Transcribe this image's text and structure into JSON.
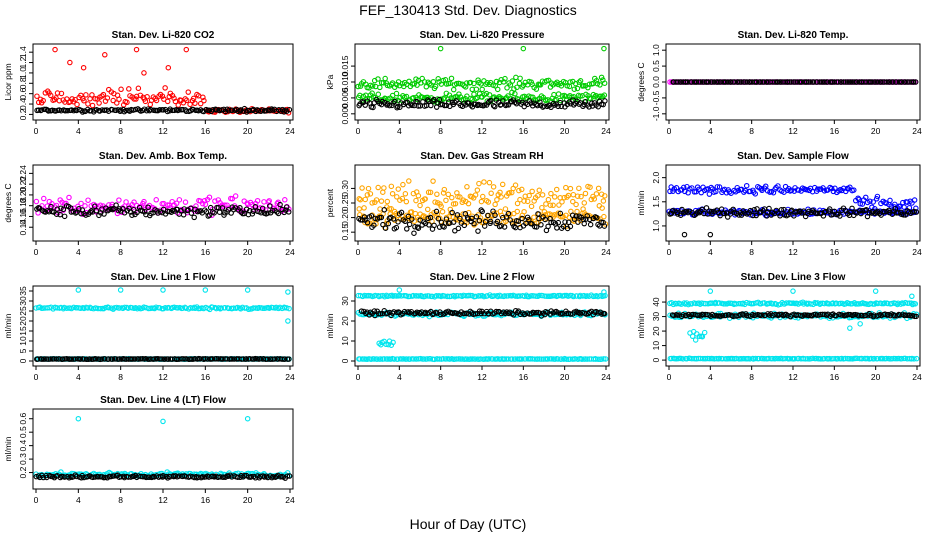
{
  "figure": {
    "title": "FEF_130413  Std. Dev. Diagnostics",
    "xlabel": "Hour of Day (UTC)"
  },
  "colors": {
    "red": "#ff0000",
    "green": "#00cc00",
    "magenta": "#ff00ff",
    "orange": "#ffa500",
    "blue": "#0000ff",
    "cyan": "#00e5ee",
    "black": "#000000"
  },
  "chart_data": [
    {
      "id": "co2",
      "type": "scatter",
      "title": "Stan. Dev. Li-820 CO2",
      "ylabel": "Licor ppm",
      "xlim": [
        0,
        24
      ],
      "xticks": [
        0,
        4,
        8,
        12,
        16,
        20,
        24
      ],
      "ylim": [
        0.15,
        1.5
      ],
      "yticks": [
        0.2,
        0.4,
        0.6,
        0.8,
        1.0,
        1.2,
        1.4
      ],
      "ytick_labels": [
        "0.2",
        "0.4",
        "0.6",
        "0.8",
        "1.0",
        "1.2",
        "1.4"
      ],
      "series": [
        {
          "color": "red",
          "segments": [
            {
              "x0": 0,
              "x1": 16,
              "mean": 0.45,
              "spread": 0.35,
              "skew": true
            },
            {
              "x0": 16,
              "x1": 24,
              "mean": 0.27,
              "spread": 0.05
            }
          ],
          "outliers": [
            [
              1.8,
              1.45
            ],
            [
              3.2,
              1.2
            ],
            [
              6.5,
              1.35
            ],
            [
              9.5,
              1.45
            ],
            [
              10.2,
              1.0
            ],
            [
              14.2,
              1.45
            ],
            [
              4.5,
              1.1
            ],
            [
              12.5,
              1.1
            ]
          ]
        },
        {
          "color": "black",
          "segments": [
            {
              "x0": 0,
              "x1": 24,
              "mean": 0.28,
              "spread": 0.04
            }
          ]
        }
      ]
    },
    {
      "id": "pressure",
      "type": "scatter",
      "title": "Stan. Dev. Li-820 Pressure",
      "ylabel": "kPa",
      "xlim": [
        0,
        24
      ],
      "xticks": [
        0,
        4,
        8,
        12,
        16,
        20,
        24
      ],
      "ylim": [
        -0.001,
        0.021
      ],
      "yticks": [
        0.0,
        0.005,
        0.01,
        0.015
      ],
      "ytick_labels": [
        "0.000",
        "0.005",
        "0.010",
        "0.015"
      ],
      "series": [
        {
          "color": "green",
          "segments": [
            {
              "x0": 0,
              "x1": 24,
              "mean": 0.0095,
              "spread": 0.0025
            },
            {
              "x0": 0,
              "x1": 24,
              "mean": 0.005,
              "spread": 0.002
            }
          ],
          "outliers": [
            [
              8,
              0.0205
            ],
            [
              16,
              0.0205
            ],
            [
              23.8,
              0.0205
            ]
          ]
        },
        {
          "color": "black",
          "segments": [
            {
              "x0": 0,
              "x1": 24,
              "mean": 0.003,
              "spread": 0.002
            }
          ]
        }
      ]
    },
    {
      "id": "temp",
      "type": "scatter",
      "title": "Stan. Dev. Li-820 Temp.",
      "ylabel": "degrees C",
      "xlim": [
        0,
        24
      ],
      "xticks": [
        0,
        4,
        8,
        12,
        16,
        20,
        24
      ],
      "ylim": [
        -1.1,
        1.1
      ],
      "yticks": [
        -1.0,
        -0.5,
        0.0,
        0.5,
        1.0
      ],
      "ytick_labels": [
        "-1.0",
        "-0.5",
        "0.0",
        "0.5",
        "1.0"
      ],
      "series": [
        {
          "color": "magenta",
          "segments": [
            {
              "x0": 0,
              "x1": 24,
              "mean": 0.0,
              "spread": 0.0
            }
          ]
        },
        {
          "color": "black",
          "segments": [
            {
              "x0": 0.3,
              "x1": 24,
              "mean": 0.0,
              "spread": 0.0
            }
          ]
        }
      ]
    },
    {
      "id": "ambbox",
      "type": "scatter",
      "title": "Stan. Dev. Amb. Box Temp.",
      "ylabel": "degrees C",
      "xlim": [
        0,
        24
      ],
      "xticks": [
        0,
        4,
        8,
        12,
        16,
        20,
        24
      ],
      "ylim": [
        0.12,
        0.25
      ],
      "yticks": [
        0.14,
        0.16,
        0.18,
        0.2,
        0.22,
        0.24
      ],
      "ytick_labels": [
        "0.14",
        "0.16",
        "0.18",
        "0.20",
        "0.22",
        "0.24"
      ],
      "series": [
        {
          "color": "magenta",
          "segments": [
            {
              "x0": 0,
              "x1": 24,
              "mean": 0.18,
              "spread": 0.025
            }
          ]
        },
        {
          "color": "black",
          "segments": [
            {
              "x0": 0,
              "x1": 24,
              "mean": 0.17,
              "spread": 0.015
            }
          ]
        }
      ]
    },
    {
      "id": "rh",
      "type": "scatter",
      "title": "Stan. Dev. Gas Stream RH",
      "ylabel": "percent",
      "xlim": [
        0,
        24
      ],
      "xticks": [
        0,
        4,
        8,
        12,
        16,
        20,
        24
      ],
      "ylim": [
        0.13,
        0.37
      ],
      "yticks": [
        0.15,
        0.2,
        0.25,
        0.3
      ],
      "ytick_labels": [
        "0.15",
        "0.20",
        "0.25",
        "0.30"
      ],
      "series": [
        {
          "color": "orange",
          "segments": [
            {
              "x0": 0,
              "x1": 24,
              "mean": 0.2,
              "spread": 0.04
            },
            {
              "x0": 0,
              "x1": 24,
              "mean": 0.27,
              "spread": 0.07
            }
          ]
        },
        {
          "color": "black",
          "segments": [
            {
              "x0": 0,
              "x1": 24,
              "mean": 0.19,
              "spread": 0.05
            }
          ]
        }
      ]
    },
    {
      "id": "sampleflow",
      "type": "scatter",
      "title": "Stan. Dev. Sample Flow",
      "ylabel": "ml/min",
      "xlim": [
        0,
        24
      ],
      "xticks": [
        0,
        4,
        8,
        12,
        16,
        20,
        24
      ],
      "ylim": [
        0.75,
        2.2
      ],
      "yticks": [
        1.0,
        1.5,
        2.0
      ],
      "ytick_labels": [
        "1.0",
        "1.5",
        "2.0"
      ],
      "series": [
        {
          "color": "blue",
          "segments": [
            {
              "x0": 0,
              "x1": 18,
              "mean": 1.75,
              "spread": 0.12
            },
            {
              "x0": 18,
              "x1": 24,
              "mean": 1.45,
              "spread": 0.2
            },
            {
              "x0": 0,
              "x1": 24,
              "mean": 1.28,
              "spread": 0.08
            }
          ]
        },
        {
          "color": "black",
          "segments": [
            {
              "x0": 0,
              "x1": 24,
              "mean": 1.28,
              "spread": 0.12
            }
          ],
          "outliers": [
            [
              1.5,
              0.82
            ],
            [
              4,
              0.82
            ]
          ]
        }
      ]
    },
    {
      "id": "line1",
      "type": "scatter",
      "title": "Stan. Dev. Line 1 Flow",
      "ylabel": "ml/min",
      "xlim": [
        0,
        24
      ],
      "xticks": [
        0,
        4,
        8,
        12,
        16,
        20,
        24
      ],
      "ylim": [
        -1,
        36
      ],
      "yticks": [
        0,
        5,
        10,
        15,
        20,
        25,
        30,
        35
      ],
      "ytick_labels": [
        "0",
        "5",
        "10",
        "15",
        "20",
        "25",
        "30",
        "35"
      ],
      "series": [
        {
          "color": "cyan",
          "segments": [
            {
              "x0": 0,
              "x1": 24,
              "mean": 26.5,
              "spread": 0.8
            },
            {
              "x0": 0,
              "x1": 24,
              "mean": 1.0,
              "spread": 0.2
            }
          ],
          "outliers": [
            [
              4,
              35.5
            ],
            [
              8,
              35.5
            ],
            [
              12,
              35.5
            ],
            [
              16,
              35.5
            ],
            [
              20,
              35.5
            ],
            [
              23.8,
              34.5
            ],
            [
              23.8,
              20
            ]
          ]
        },
        {
          "color": "black",
          "segments": [
            {
              "x0": 0,
              "x1": 24,
              "mean": 1.0,
              "spread": 0.2
            }
          ]
        }
      ]
    },
    {
      "id": "line2",
      "type": "scatter",
      "title": "Stan. Dev. Line 2 Flow",
      "ylabel": "ml/min",
      "xlim": [
        0,
        24
      ],
      "xticks": [
        0,
        4,
        8,
        12,
        16,
        20,
        24
      ],
      "ylim": [
        -1,
        36
      ],
      "yticks": [
        0,
        10,
        20,
        30
      ],
      "ytick_labels": [
        "0",
        "10",
        "20",
        "30"
      ],
      "series": [
        {
          "color": "cyan",
          "segments": [
            {
              "x0": 0,
              "x1": 24,
              "mean": 32.5,
              "spread": 0.6
            },
            {
              "x0": 0,
              "x1": 24,
              "mean": 23.5,
              "spread": 1.5
            },
            {
              "x0": 0,
              "x1": 24,
              "mean": 1.0,
              "spread": 0.2
            },
            {
              "x0": 2,
              "x1": 3.5,
              "mean": 9,
              "spread": 3
            }
          ],
          "outliers": [
            [
              4,
              35.5
            ],
            [
              23.8,
              34.5
            ]
          ]
        },
        {
          "color": "black",
          "segments": [
            {
              "x0": 0.3,
              "x1": 24,
              "mean": 24,
              "spread": 1.5
            }
          ]
        }
      ]
    },
    {
      "id": "line3",
      "type": "scatter",
      "title": "Stan. Dev. Line 3 Flow",
      "ylabel": "ml/min",
      "xlim": [
        0,
        24
      ],
      "xticks": [
        0,
        4,
        8,
        12,
        16,
        20,
        24
      ],
      "ylim": [
        -2,
        49
      ],
      "yticks": [
        0,
        10,
        20,
        30,
        40
      ],
      "ytick_labels": [
        "0",
        "10",
        "20",
        "30",
        "40"
      ],
      "series": [
        {
          "color": "cyan",
          "segments": [
            {
              "x0": 0,
              "x1": 24,
              "mean": 39,
              "spread": 1.0
            },
            {
              "x0": 0,
              "x1": 24,
              "mean": 30.5,
              "spread": 2.5
            },
            {
              "x0": 0,
              "x1": 24,
              "mean": 1.0,
              "spread": 0.3
            },
            {
              "x0": 2,
              "x1": 3.5,
              "mean": 18,
              "spread": 5
            }
          ],
          "outliers": [
            [
              4,
              47.5
            ],
            [
              12,
              47.5
            ],
            [
              20,
              47.5
            ],
            [
              23.5,
              44
            ],
            [
              17.5,
              22
            ],
            [
              18.5,
              25
            ]
          ]
        },
        {
          "color": "black",
          "segments": [
            {
              "x0": 0.3,
              "x1": 24,
              "mean": 31,
              "spread": 1.5
            }
          ]
        }
      ]
    },
    {
      "id": "line4",
      "type": "scatter",
      "title": "Stan. Dev. Line 4 (LT) Flow",
      "ylabel": "ml/min",
      "xlim": [
        0,
        24
      ],
      "xticks": [
        0,
        4,
        8,
        12,
        16,
        20,
        24
      ],
      "ylim": [
        0.1,
        0.65
      ],
      "yticks": [
        0.2,
        0.3,
        0.4,
        0.5,
        0.6
      ],
      "ytick_labels": [
        "0.2",
        "0.3",
        "0.4",
        "0.5",
        "0.6"
      ],
      "series": [
        {
          "color": "cyan",
          "segments": [
            {
              "x0": 0,
              "x1": 24,
              "mean": 0.185,
              "spread": 0.02
            }
          ],
          "outliers": [
            [
              4,
              0.6
            ],
            [
              12,
              0.58
            ],
            [
              20,
              0.6
            ]
          ]
        },
        {
          "color": "black",
          "segments": [
            {
              "x0": 0,
              "x1": 24,
              "mean": 0.17,
              "spread": 0.015
            }
          ]
        }
      ]
    }
  ]
}
